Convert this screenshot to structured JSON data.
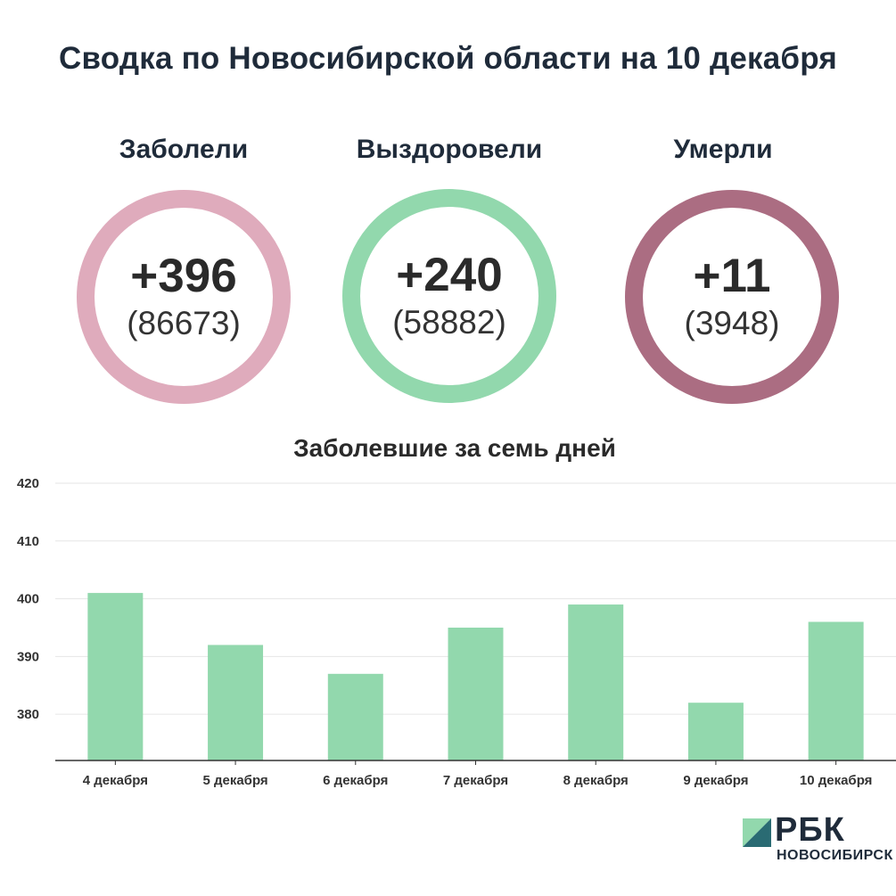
{
  "title": "Сводка по Новосибирской области на 10 декабря",
  "stats": [
    {
      "label": "Заболели",
      "delta": "+396",
      "total": "(86673)",
      "color": "#dfabbc"
    },
    {
      "label": "Выздоровели",
      "delta": "+240",
      "total": "(58882)",
      "color": "#92d8ad"
    },
    {
      "label": "Умерли",
      "delta": "+11",
      "total": "(3948)",
      "color": "#ab6d82"
    }
  ],
  "chart_title": "Заболевшие за семь дней",
  "chart_data": {
    "type": "bar",
    "title": "Заболевшие за семь дней",
    "categories": [
      "4 декабря",
      "5 декабря",
      "6 декабря",
      "7 декабря",
      "8 декабря",
      "9 декабря",
      "10 декабря"
    ],
    "values": [
      401,
      392,
      387,
      395,
      399,
      382,
      396
    ],
    "ylim": [
      372,
      420
    ],
    "yticks": [
      380,
      390,
      400,
      410,
      420
    ],
    "grid": true,
    "bar_color": "#92d8ad"
  },
  "logo": {
    "text": "РБК",
    "sub": "НОВОСИБИРСК",
    "color_light": "#92d8ad",
    "color_dark": "#2a6b73"
  }
}
